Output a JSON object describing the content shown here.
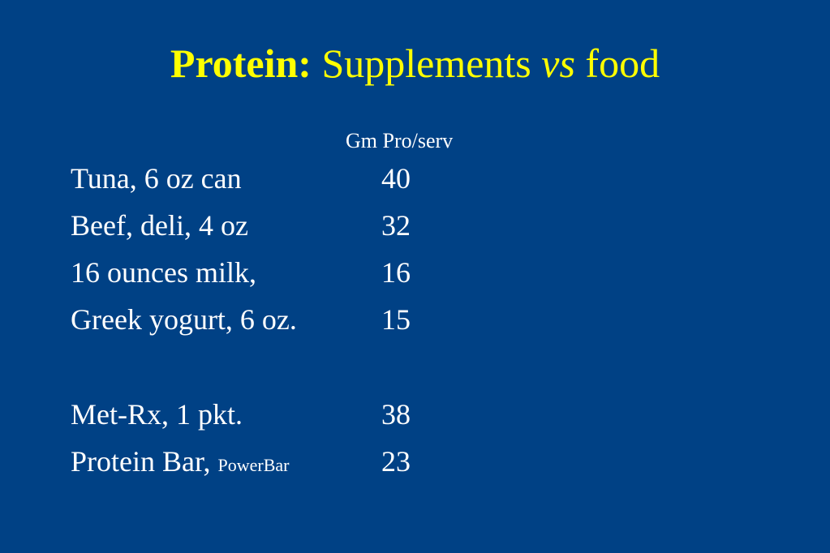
{
  "slide": {
    "title": {
      "bold_part": "Protein:",
      "part1": "Supplements",
      "italic_part": "vs",
      "part2": "food"
    },
    "column_header": "Gm Pro/serv",
    "foods": [
      {
        "name": "Tuna, 6 oz can",
        "value": "40"
      },
      {
        "name": "Beef, deli, 4 oz",
        "value": "32"
      },
      {
        "name": "16 ounces milk,",
        "value": "16"
      },
      {
        "name": "Greek yogurt, 6 oz.",
        "value": "15"
      }
    ],
    "supplements": [
      {
        "name": "Met-Rx, 1 pkt.",
        "brand": "",
        "value": "38"
      },
      {
        "name": "Protein Bar, ",
        "brand": "PowerBar",
        "value": "23"
      }
    ],
    "colors": {
      "background": "#004185",
      "title": "#ffff00",
      "text": "#ffffff"
    }
  }
}
